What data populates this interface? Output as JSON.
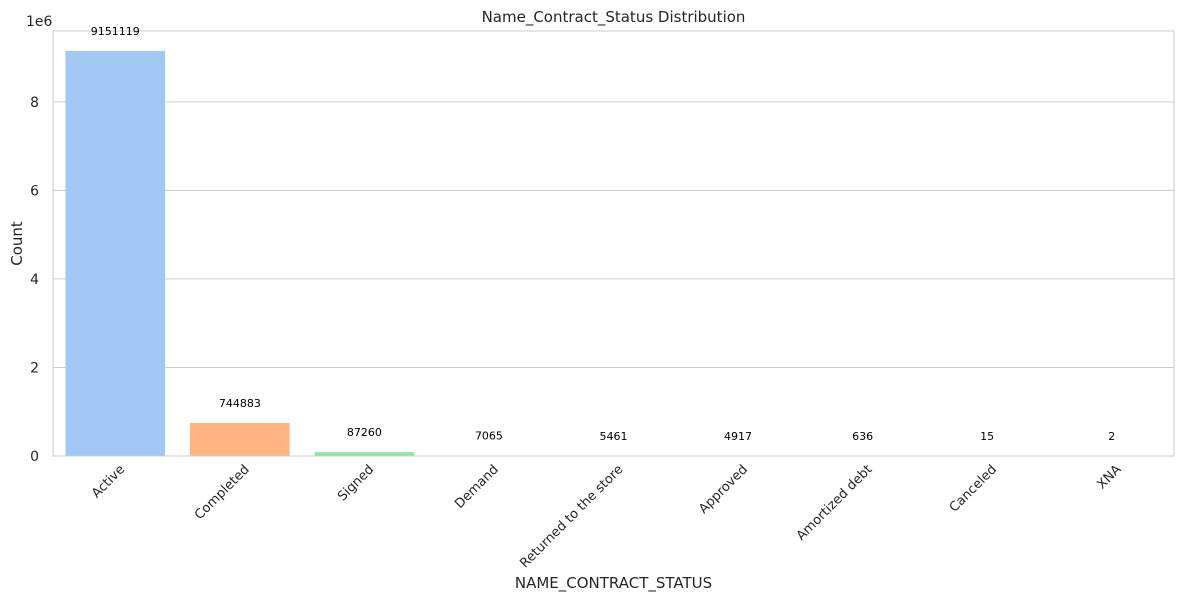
{
  "chart_data": {
    "type": "bar",
    "title": "Name_Contract_Status Distribution",
    "xlabel": "NAME_CONTRACT_STATUS",
    "ylabel": "Count",
    "y_offset_label": "1e6",
    "categories": [
      "Active",
      "Completed",
      "Signed",
      "Demand",
      "Returned to the store",
      "Approved",
      "Amortized debt",
      "Canceled",
      "XNA"
    ],
    "values": [
      9151119,
      744883,
      87260,
      7065,
      5461,
      4917,
      636,
      15,
      2
    ],
    "data_labels": [
      "9151119",
      "744883",
      "87260",
      "7065",
      "5461",
      "4917",
      "636",
      "15",
      "2"
    ],
    "colors": [
      "#a1c9f4",
      "#ffb482",
      "#8de5a1",
      "#ff9f9b",
      "#d0bbff",
      "#debb9b",
      "#fab0e4",
      "#cfcfcf",
      "#fffea3"
    ],
    "ylim": [
      0,
      9.6
    ],
    "yticks": [
      0,
      2,
      4,
      6,
      8
    ],
    "ytick_labels": [
      "0",
      "2",
      "4",
      "6",
      "8"
    ],
    "grid": true,
    "legend": "none"
  }
}
